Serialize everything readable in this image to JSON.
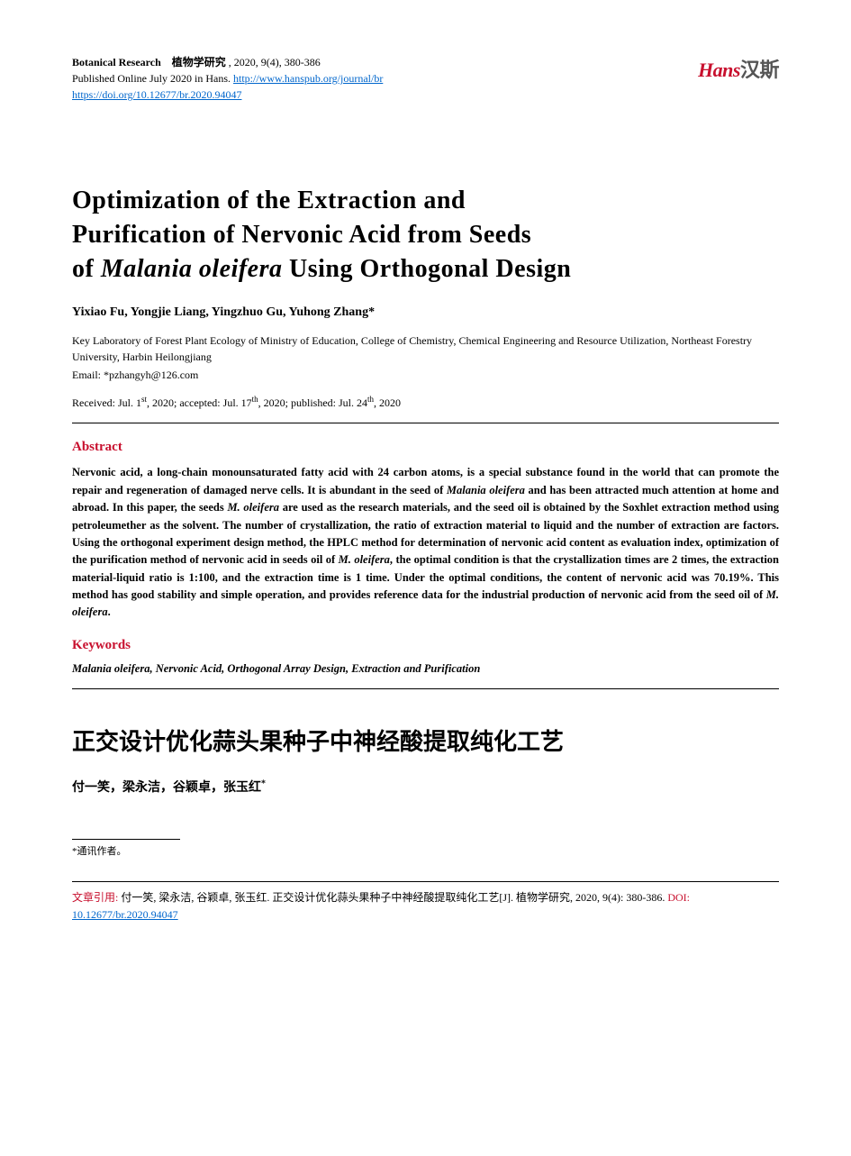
{
  "header": {
    "journal_en": "Botanical Research",
    "journal_cn": "植物学研究",
    "issue": ", 2020, 9(4), 380-386",
    "published": "Published Online July 2020 in Hans. ",
    "journal_url": "http://www.hanspub.org/journal/br",
    "doi_url": "https://doi.org/10.12677/br.2020.94047",
    "logo_red": "Hans",
    "logo_grey": "汉斯"
  },
  "title": {
    "line1": "Optimization of the Extraction and",
    "line2": "Purification of Nervonic Acid from Seeds",
    "line3_pre": "of ",
    "line3_italic": "Malania oleifera",
    "line3_post": " Using Orthogonal Design"
  },
  "authors": "Yixiao Fu, Yongjie Liang, Yingzhuo Gu, Yuhong Zhang*",
  "affiliation": "Key Laboratory of Forest Plant Ecology of Ministry of Education, College of Chemistry, Chemical Engineering and Resource Utilization, Northeast Forestry University, Harbin Heilongjiang",
  "email_label": "Email: ",
  "email": "*pzhangyh@126.com",
  "dates": {
    "received_label": "Received: Jul. 1",
    "received_sup": "st",
    "received_year": ", 2020; ",
    "accepted_label": "accepted: Jul. 17",
    "accepted_sup": "th",
    "accepted_year": ", 2020; ",
    "published_label": "published: Jul. 24",
    "published_sup": "th",
    "published_year": ", 2020"
  },
  "abstract_heading": "Abstract",
  "abstract": {
    "p1": "Nervonic acid, a long-chain monounsaturated fatty acid with 24 carbon atoms, is a special substance found in the world that can promote the repair and regeneration of damaged nerve cells. It is abundant in the seed of ",
    "i1": "Malania oleifera",
    "p2": " and has been attracted much attention at home and abroad. In this paper, the seeds ",
    "i2": "M. oleifera",
    "p3": " are used as the research materials, and the seed oil is obtained by the Soxhlet extraction method using petroleumether as the solvent. The number of crystallization, the ratio of extraction material to liquid and the number of extraction are factors. Using the orthogonal experiment design method, the HPLC method for determination of nervonic acid content as evaluation index, optimization of the purification method of nervonic acid in seeds oil of ",
    "i3": "M. oleifera",
    "p4": ", the optimal condition is that the crystallization times are 2 times, the extraction material-liquid ratio is 1:100, and the extraction time is 1 time. Under the optimal conditions, the content of nervonic acid was 70.19%. This method has good stability and simple operation, and provides reference data for the industrial production of nervonic acid from the seed oil of ",
    "i4": "M. oleifera",
    "p5": "."
  },
  "keywords_heading": "Keywords",
  "keywords": "Malania oleifera, Nervonic Acid, Orthogonal Array Design, Extraction and Purification",
  "cn_title": "正交设计优化蒜头果种子中神经酸提取纯化工艺",
  "cn_authors": "付一笑，梁永洁，谷颖卓，张玉红",
  "cn_author_sup": "*",
  "footnote": "*通讯作者。",
  "citation": {
    "label": "文章引用: ",
    "text1": "付一笑, 梁永洁, 谷颖卓, 张玉红. 正交设计优化蒜头果种子中神经酸提取纯化工艺[J]. 植物学研究, 2020, 9(4): 380-386. ",
    "doi_label": "DOI: ",
    "doi": "10.12677/br.2020.94047"
  },
  "colors": {
    "accent_red": "#c8102e",
    "link_blue": "#0066cc",
    "text_black": "#000000",
    "logo_grey": "#555555",
    "background": "#ffffff"
  },
  "typography": {
    "title_fontsize": 28,
    "body_fontsize": 12.5,
    "header_fontsize": 12,
    "heading_fontsize": 15,
    "cn_title_fontsize": 26
  }
}
